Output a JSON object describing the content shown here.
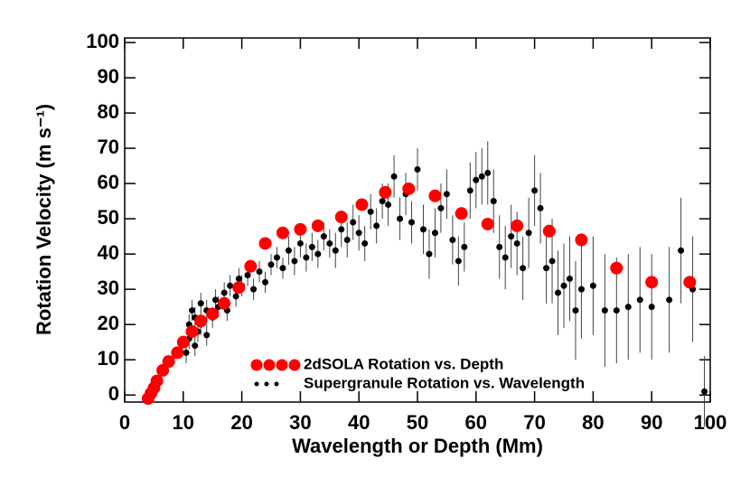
{
  "chart_data": {
    "type": "scatter",
    "x_label": "Wavelength or Depth (Mm)",
    "y_label": "Rotation Velocity (m s⁻¹)",
    "xlim": [
      0,
      100
    ],
    "xticks": [
      0,
      10,
      20,
      30,
      40,
      50,
      60,
      70,
      80,
      90,
      100
    ],
    "ylim": [
      -2,
      101.3
    ],
    "yticks": [
      0,
      10,
      20,
      30,
      40,
      50,
      60,
      70,
      80,
      90,
      100
    ],
    "legend_position": "lower center",
    "series": [
      {
        "name": "2dSOLA Rotation vs. Depth",
        "color": "#ff0000",
        "x": [
          4,
          4.5,
          5,
          5.5,
          6.5,
          7.5,
          9,
          10,
          11.5,
          13,
          15,
          17,
          19.5,
          21.5,
          24,
          27,
          30,
          33,
          37,
          40.5,
          44.5,
          48.5,
          53,
          57.5,
          62,
          67,
          72.5,
          78,
          84,
          90,
          96.5
        ],
        "values": [
          -1,
          0.5,
          2,
          4,
          7,
          9.5,
          12,
          15,
          18,
          21,
          23,
          26,
          30.5,
          36.5,
          43,
          46,
          47,
          48,
          50.5,
          54,
          57.5,
          58.5,
          56.5,
          51.5,
          48.5,
          48,
          46.5,
          44,
          36,
          32,
          32
        ]
      },
      {
        "name": "Supergranule Rotation vs. Wavelength",
        "color": "#000000",
        "x": [
          10.5,
          11,
          11,
          11.5,
          12,
          12,
          12.5,
          13,
          13,
          14,
          14,
          15,
          15.5,
          16,
          17,
          17.5,
          18,
          19,
          19.5,
          20,
          21,
          22,
          23,
          24,
          25,
          26,
          27,
          28,
          29,
          30,
          31,
          32,
          33,
          34,
          35,
          36,
          37,
          38,
          39,
          40,
          41,
          42,
          43,
          44,
          45,
          46,
          47,
          48,
          49,
          50,
          51,
          52,
          53,
          54,
          55,
          56,
          57,
          58,
          59,
          60,
          61,
          62,
          63,
          64,
          65,
          66,
          67,
          68,
          69,
          70,
          71,
          72,
          73,
          74,
          75,
          76,
          77,
          78,
          80,
          82,
          84,
          86,
          88,
          90,
          93,
          95,
          97,
          99
        ],
        "values": [
          12,
          16,
          20,
          24,
          14,
          22,
          18,
          26,
          20,
          24,
          17,
          22,
          27,
          25,
          29,
          24,
          31,
          28,
          33,
          31,
          34,
          30,
          35,
          32,
          37,
          39,
          36,
          41,
          38,
          43,
          39,
          42,
          40,
          45,
          43,
          41,
          47,
          44,
          49,
          46,
          43,
          52,
          48,
          55,
          54,
          62,
          50,
          57,
          49,
          64,
          47,
          40,
          46,
          53,
          57,
          44,
          38,
          42,
          58,
          61,
          62,
          63,
          55,
          42,
          39,
          45,
          43,
          36,
          46,
          58,
          53,
          36,
          38,
          29,
          31,
          33,
          24,
          30,
          31,
          24,
          24,
          25,
          27,
          25,
          27,
          41,
          30,
          1
        ],
        "errors": [
          3,
          3,
          3,
          3,
          3,
          3,
          3,
          3,
          3,
          3,
          3,
          3,
          3,
          3,
          3,
          3,
          3,
          3,
          3,
          3,
          3,
          3,
          3,
          3,
          3,
          3,
          3,
          4,
          4,
          4,
          4,
          4,
          4,
          4,
          4,
          5,
          5,
          5,
          5,
          5,
          5,
          5,
          5,
          5,
          6,
          6,
          6,
          6,
          6,
          6,
          7,
          7,
          7,
          7,
          7,
          7,
          7,
          7,
          8,
          8,
          8,
          9,
          9,
          9,
          9,
          9,
          9,
          9,
          10,
          10,
          10,
          10,
          12,
          12,
          12,
          12,
          14,
          14,
          14,
          16,
          15,
          15,
          15,
          15,
          15,
          15,
          15,
          10
        ]
      }
    ]
  }
}
